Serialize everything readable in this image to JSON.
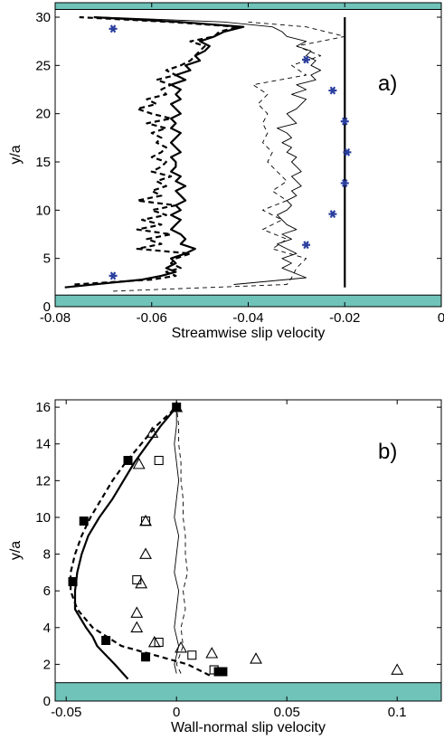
{
  "colors": {
    "wall": "#6fc3b9",
    "marker_blue": "#2b3f9e",
    "line": "#000000"
  },
  "chart_data": [
    {
      "type": "line",
      "panel_label": "a)",
      "xlabel": "Streamwise slip velocity",
      "ylabel": "y/a",
      "xlim": [
        -0.08,
        0
      ],
      "ylim": [
        0,
        31.5
      ],
      "xticks": [
        -0.08,
        -0.06,
        -0.04,
        -0.02,
        0
      ],
      "xtick_labels": [
        "-0.08",
        "-0.06",
        "-0.04",
        "-0.02",
        "0"
      ],
      "yticks": [
        0,
        5,
        10,
        15,
        20,
        25,
        30
      ],
      "ytick_labels": [
        "0",
        "5",
        "10",
        "15",
        "20",
        "25",
        "30"
      ],
      "walls": [
        [
          0,
          1.2
        ],
        [
          30.8,
          31.5
        ]
      ],
      "grid": false,
      "series": [
        {
          "style": "thick-solid",
          "y": [
            2,
            2.8,
            3.2,
            3.6,
            4,
            4.5,
            5,
            5.5,
            6,
            6.5,
            7,
            7.5,
            8,
            8.5,
            9,
            9.5,
            10,
            10.5,
            11,
            11.5,
            12,
            12.5,
            13,
            13.5,
            14,
            14.5,
            15,
            15.5,
            16,
            16.5,
            17,
            17.5,
            18,
            18.5,
            19,
            19.5,
            20,
            20.5,
            21,
            21.5,
            22,
            22.5,
            23,
            23.5,
            24,
            24.5,
            25,
            25.5,
            26,
            26.5,
            27,
            27.5,
            28,
            28.5,
            29,
            29.5,
            30
          ],
          "x": [
            -0.078,
            -0.062,
            -0.058,
            -0.055,
            -0.057,
            -0.055,
            -0.056,
            -0.053,
            -0.051,
            -0.054,
            -0.053,
            -0.054,
            -0.056,
            -0.055,
            -0.054,
            -0.056,
            -0.054,
            -0.055,
            -0.053,
            -0.054,
            -0.055,
            -0.053,
            -0.055,
            -0.054,
            -0.056,
            -0.055,
            -0.055,
            -0.056,
            -0.054,
            -0.055,
            -0.056,
            -0.055,
            -0.054,
            -0.056,
            -0.055,
            -0.056,
            -0.054,
            -0.055,
            -0.056,
            -0.054,
            -0.055,
            -0.054,
            -0.056,
            -0.053,
            -0.055,
            -0.052,
            -0.053,
            -0.05,
            -0.051,
            -0.049,
            -0.048,
            -0.05,
            -0.047,
            -0.045,
            -0.041,
            -0.054,
            -0.072
          ]
        },
        {
          "style": "thick-dashed",
          "y": [
            2.3,
            2.8,
            3.2,
            3.6,
            4,
            4.5,
            5,
            5.5,
            6,
            6.5,
            7,
            7.5,
            8,
            8.5,
            9,
            9.5,
            10,
            10.5,
            11,
            11.5,
            12,
            12.5,
            13,
            13.5,
            14,
            14.5,
            15,
            15.5,
            16,
            16.5,
            17,
            17.5,
            18,
            18.5,
            19,
            19.5,
            20,
            20.5,
            21,
            21.5,
            22,
            22.5,
            23,
            23.5,
            24,
            24.5,
            25,
            25.5,
            26,
            26.5,
            27,
            27.5,
            28,
            28.5,
            29,
            29.5,
            30
          ],
          "x": [
            -0.076,
            -0.06,
            -0.055,
            -0.057,
            -0.054,
            -0.056,
            -0.055,
            -0.052,
            -0.063,
            -0.058,
            -0.061,
            -0.056,
            -0.063,
            -0.058,
            -0.062,
            -0.057,
            -0.06,
            -0.055,
            -0.063,
            -0.058,
            -0.06,
            -0.057,
            -0.059,
            -0.056,
            -0.06,
            -0.058,
            -0.057,
            -0.06,
            -0.058,
            -0.057,
            -0.059,
            -0.058,
            -0.06,
            -0.057,
            -0.061,
            -0.056,
            -0.06,
            -0.063,
            -0.059,
            -0.061,
            -0.057,
            -0.058,
            -0.056,
            -0.059,
            -0.055,
            -0.057,
            -0.054,
            -0.052,
            -0.051,
            -0.05,
            -0.049,
            -0.052,
            -0.047,
            -0.046,
            -0.042,
            -0.056,
            -0.075
          ]
        },
        {
          "style": "thin-solid",
          "y": [
            2.3,
            3,
            4,
            4.5,
            5,
            5.5,
            6,
            6.5,
            7,
            7.5,
            8,
            8.5,
            9,
            9.5,
            10,
            10.5,
            11,
            11.5,
            12,
            12.5,
            13,
            13.5,
            14,
            14.5,
            15,
            15.5,
            16,
            16.5,
            17,
            17.5,
            18,
            18.5,
            19,
            19.5,
            20,
            20.5,
            21,
            21.5,
            22,
            22.5,
            23,
            23.5,
            24,
            24.5,
            25,
            25.5,
            26,
            26.5,
            27,
            27.5,
            28,
            28.5,
            29,
            29.5,
            30
          ],
          "x": [
            -0.043,
            -0.028,
            -0.033,
            -0.031,
            -0.033,
            -0.03,
            -0.032,
            -0.034,
            -0.031,
            -0.033,
            -0.03,
            -0.032,
            -0.033,
            -0.034,
            -0.032,
            -0.031,
            -0.032,
            -0.03,
            -0.031,
            -0.029,
            -0.03,
            -0.031,
            -0.029,
            -0.03,
            -0.031,
            -0.03,
            -0.032,
            -0.031,
            -0.033,
            -0.031,
            -0.032,
            -0.034,
            -0.03,
            -0.031,
            -0.032,
            -0.03,
            -0.029,
            -0.028,
            -0.031,
            -0.028,
            -0.03,
            -0.026,
            -0.027,
            -0.025,
            -0.027,
            -0.026,
            -0.028,
            -0.027,
            -0.03,
            -0.028,
            -0.032,
            -0.033,
            -0.035,
            -0.045,
            -0.07
          ]
        },
        {
          "style": "thin-dashed",
          "y": [
            1.6,
            2.3,
            3,
            4,
            5,
            6,
            7,
            8,
            9,
            10,
            11,
            12,
            13,
            14,
            15,
            16,
            17,
            18,
            19,
            20,
            21,
            22,
            23,
            24,
            25,
            26,
            27,
            28,
            29,
            29.5
          ],
          "x": [
            -0.068,
            -0.032,
            -0.031,
            -0.03,
            -0.028,
            -0.035,
            -0.032,
            -0.037,
            -0.033,
            -0.037,
            -0.032,
            -0.035,
            -0.032,
            -0.034,
            -0.036,
            -0.035,
            -0.037,
            -0.036,
            -0.037,
            -0.036,
            -0.038,
            -0.036,
            -0.039,
            -0.028,
            -0.031,
            -0.025,
            -0.03,
            -0.02,
            -0.028,
            -0.04
          ]
        },
        {
          "style": "thick-solid",
          "y": [
            2,
            30
          ],
          "x": [
            -0.02,
            -0.02
          ]
        }
      ],
      "markers": {
        "shape": "star",
        "color": "#2b3f9e",
        "points": [
          [
            -0.068,
            3.2
          ],
          [
            -0.068,
            28.8
          ],
          [
            -0.028,
            6.4
          ],
          [
            -0.0225,
            9.6
          ],
          [
            -0.02,
            12.8
          ],
          [
            -0.0195,
            16
          ],
          [
            -0.02,
            19.2
          ],
          [
            -0.0225,
            22.4
          ],
          [
            -0.028,
            25.6
          ]
        ]
      }
    },
    {
      "type": "line",
      "panel_label": "b)",
      "xlabel": "Wall-normal slip velocity",
      "ylabel": "y/a",
      "xlim": [
        -0.055,
        0.12
      ],
      "ylim": [
        0,
        16.4
      ],
      "xticks": [
        -0.05,
        0,
        0.05,
        0.1
      ],
      "xtick_labels": [
        "-0.05",
        "0",
        "0.05",
        "0.1"
      ],
      "yticks": [
        0,
        2,
        4,
        6,
        8,
        10,
        12,
        14,
        16
      ],
      "ytick_labels": [
        "0",
        "2",
        "4",
        "6",
        "8",
        "10",
        "12",
        "14",
        "16"
      ],
      "walls": [
        [
          0,
          1
        ]
      ],
      "grid": false,
      "series": [
        {
          "style": "thick-solid",
          "y": [
            1.2,
            2,
            2.5,
            3,
            3.5,
            4,
            5,
            6,
            7,
            8,
            9,
            10,
            11,
            12,
            13,
            14,
            15,
            16
          ],
          "x": [
            -0.022,
            -0.028,
            -0.032,
            -0.036,
            -0.038,
            -0.041,
            -0.046,
            -0.046,
            -0.045,
            -0.043,
            -0.04,
            -0.035,
            -0.029,
            -0.024,
            -0.019,
            -0.013,
            -0.007,
            0
          ]
        },
        {
          "style": "thick-dashed",
          "y": [
            1.4,
            2,
            2.5,
            3,
            4,
            5,
            6,
            7,
            8,
            9,
            10,
            11,
            12,
            13,
            14,
            15,
            16
          ],
          "x": [
            0.015,
            0.005,
            -0.01,
            -0.025,
            -0.038,
            -0.045,
            -0.048,
            -0.048,
            -0.046,
            -0.043,
            -0.039,
            -0.034,
            -0.029,
            -0.023,
            -0.016,
            -0.009,
            0
          ]
        },
        {
          "style": "thin-solid",
          "y": [
            1.5,
            2,
            3,
            4,
            5,
            6,
            7,
            8,
            9,
            10,
            11,
            12,
            13,
            14,
            15,
            16
          ],
          "x": [
            0,
            -0.001,
            0.001,
            -0.001,
            0,
            0.001,
            -0.001,
            0,
            0.001,
            -0.001,
            0,
            0.001,
            0,
            -0.001,
            0,
            0
          ]
        },
        {
          "style": "thin-dashed",
          "y": [
            1.5,
            2,
            3,
            4,
            5,
            6,
            7,
            8,
            9,
            10,
            11,
            12,
            13,
            14,
            15,
            16
          ],
          "x": [
            0.002,
            0,
            0.003,
            0.002,
            0.004,
            0.003,
            0.005,
            0.004,
            0.004,
            0.003,
            0.003,
            0.002,
            0.002,
            0.001,
            0.001,
            0
          ]
        }
      ],
      "marker_groups": [
        {
          "shape": "filled-square",
          "points": [
            [
              0,
              16
            ],
            [
              -0.022,
              13.1
            ],
            [
              -0.042,
              9.8
            ],
            [
              -0.047,
              6.5
            ],
            [
              -0.032,
              3.3
            ],
            [
              -0.014,
              2.4
            ],
            [
              0.021,
              1.6
            ],
            [
              0.019,
              1.6
            ]
          ]
        },
        {
          "shape": "open-square",
          "points": [
            [
              -0.008,
              13.1
            ],
            [
              -0.014,
              9.8
            ],
            [
              -0.018,
              6.6
            ],
            [
              -0.008,
              3.2
            ],
            [
              0.007,
              2.5
            ],
            [
              0.017,
              1.7
            ]
          ]
        },
        {
          "shape": "open-triangle",
          "points": [
            [
              0,
              16
            ],
            [
              -0.011,
              14.6
            ],
            [
              -0.017,
              12.9
            ],
            [
              -0.014,
              9.8
            ],
            [
              -0.014,
              8
            ],
            [
              -0.016,
              6.4
            ],
            [
              -0.018,
              4.8
            ],
            [
              -0.018,
              4
            ],
            [
              -0.01,
              3.2
            ],
            [
              0.002,
              2.9
            ],
            [
              0.016,
              2.6
            ],
            [
              0.036,
              2.3
            ],
            [
              0.1,
              1.7
            ]
          ]
        }
      ]
    }
  ]
}
